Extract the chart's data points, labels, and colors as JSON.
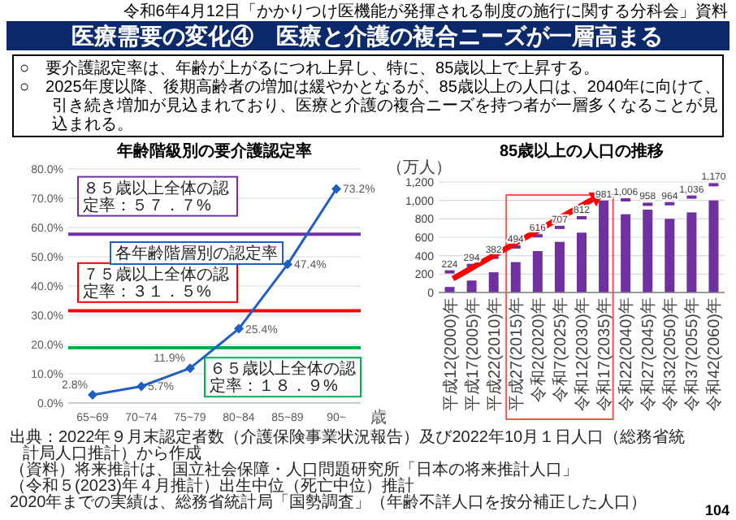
{
  "chart_data": [
    {
      "type": "other",
      "title": "医療需要の変化④　医療と介護の複合ニーズが一層高まる",
      "subtitle": "令和6年4月12日「かかりつけ医機能が発揮される制度の施行に関する分科会」資料",
      "annotations": [
        "○　要介護認定率は、年齢が上がるにつれ上昇し、特に、85歳以上で上昇する。",
        "○　2025年度以降、後期高齢者の増加は緩やかとなるが、85歳以上の人口は、2040年に向けて、引き続き増加が見込まれており、医療と介護の複合ニーズを持つ者が一層多くなることが見込まれる。",
        "104"
      ]
    },
    {
      "type": "line",
      "title": "年齢階級別の要介護認定率",
      "xlabel": "歳",
      "categories": [
        "65~69",
        "70~74",
        "75~79",
        "80~84",
        "85~89",
        "90~"
      ],
      "series": [
        {
          "name": "各年齢階層別の認定率",
          "color": "#1f5fc4",
          "values": [
            2.8,
            5.7,
            11.9,
            25.4,
            47.4,
            73.2
          ],
          "value_labels": [
            "2.8%",
            "5.7%",
            "11.9%",
            "25.4%",
            "47.4%",
            "73.2%"
          ]
        }
      ],
      "marker": "diamond",
      "ylim": [
        0,
        80
      ],
      "yticks": [
        {
          "value": 0,
          "label": "0.0%"
        },
        {
          "value": 10,
          "label": "10.0%"
        },
        {
          "value": 20,
          "label": "20.0%"
        },
        {
          "value": 30,
          "label": "30.0%"
        },
        {
          "value": 40,
          "label": "40.0%"
        },
        {
          "value": 50,
          "label": "50.0%"
        },
        {
          "value": 60,
          "label": "60.0%"
        },
        {
          "value": 70,
          "label": "70.0%"
        },
        {
          "value": 80,
          "label": "80.0%"
        }
      ],
      "grid": "y",
      "ref_lines": [
        {
          "axis": "y",
          "value": 57.7,
          "label": "８５歳以上全体の認定率：５７．７%",
          "color": "#7030a0"
        },
        {
          "axis": "y",
          "value": 31.5,
          "label": "７５歳以上全体の認定率：３１．５%",
          "color": "#ff0000"
        },
        {
          "axis": "y",
          "value": 18.9,
          "label": "６５歳以上全体の認定率：１８．９%",
          "color": "#00b050"
        }
      ],
      "annotations": [
        "出典：2022年９月末認定者数（介護保険事業状況報告）及び2022年10月１日人口（総務省統計局人口推計）から作成"
      ]
    },
    {
      "type": "bar",
      "title": "85歳以上の人口の推移",
      "ylabel": "（万人）",
      "categories": [
        "平成12(2000)年",
        "平成17(2005)年",
        "平成22(2010)年",
        "平成27(2015)年",
        "令和2(2020)年",
        "令和7(2025)年",
        "令和12(2030)年",
        "令和17(2035)年",
        "令和22(2040)年",
        "令和27(2045)年",
        "令和32(2050)年",
        "令和37(2055)年",
        "令和42(2060)年"
      ],
      "series": [
        {
          "color": "#7030a0",
          "values": [
            60,
            130,
            220,
            330,
            450,
            550,
            650,
            970,
            850,
            900,
            800,
            870,
            1000
          ]
        },
        {
          "type": "scatter",
          "color": "#7030a0",
          "values": [
            224,
            294,
            382,
            494,
            616,
            707,
            812,
            981,
            1006,
            958,
            964,
            1036,
            1170
          ],
          "value_labels": [
            "224",
            "294",
            "382",
            "494",
            "616",
            "707",
            "812",
            "981",
            "1,006",
            "958",
            "964",
            "1,036",
            "1,170"
          ]
        }
      ],
      "ylim": [
        0,
        1200
      ],
      "yticks": [
        0,
        200,
        400,
        600,
        800,
        {
          "value": 1000,
          "label": "1,000"
        },
        {
          "value": 1200,
          "label": "1,200"
        }
      ],
      "grid": "y",
      "annotations": [
        "（資料）将来推計は、国立社会保障・人口問題研究所「日本の将来推計人口」",
        "（令和５(2023)年４月推計）出生中位（死亡中位）推計",
        "2020年までの実績は、総務省統計局「国勢調査」（年齢不詳人口を按分補正した人口）"
      ]
    }
  ]
}
